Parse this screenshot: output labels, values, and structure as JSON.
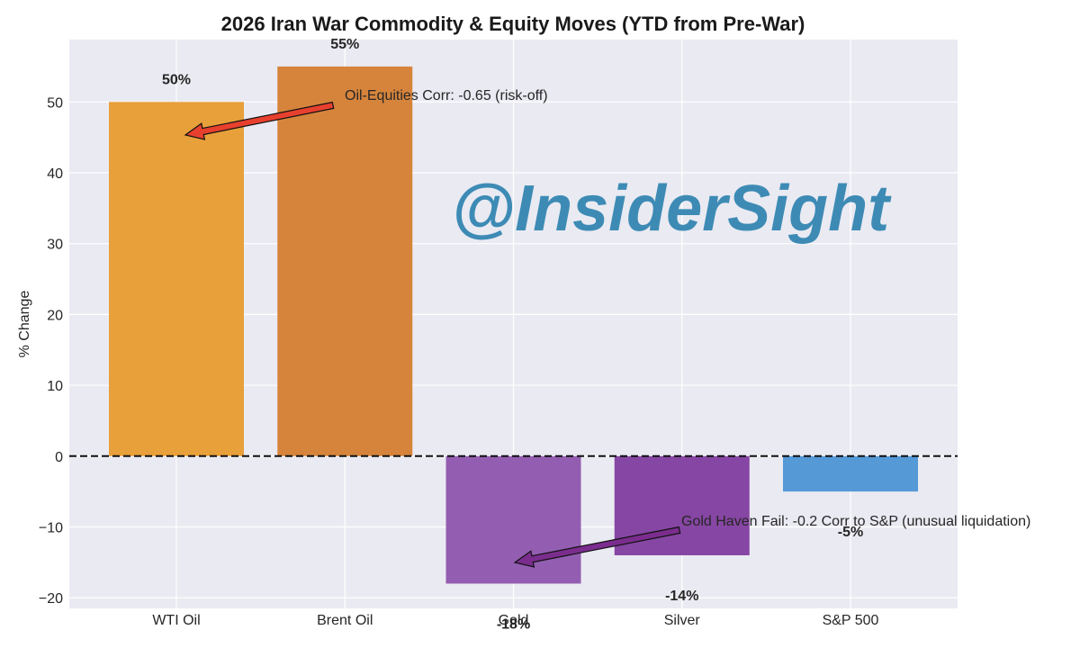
{
  "chart_data": {
    "type": "bar",
    "title": "2026 Iran War Commodity & Equity Moves (YTD from Pre-War)",
    "xlabel": "",
    "ylabel": "% Change",
    "categories": [
      "WTI Oil",
      "Brent Oil",
      "Gold",
      "Silver",
      "S&P 500"
    ],
    "values": [
      50,
      55,
      -18,
      -14,
      -5
    ],
    "value_labels": [
      "50%",
      "55%",
      "-18%",
      "-14%",
      "-5%"
    ],
    "colors": [
      "#e8a03b",
      "#d6843c",
      "#935eb1",
      "#8646a3",
      "#5599d6"
    ],
    "ylim": [
      -21.5,
      58.8
    ],
    "yticks": [
      -20,
      -10,
      0,
      10,
      20,
      30,
      40,
      50
    ],
    "ytick_labels": [
      "−20",
      "−10",
      "0",
      "10",
      "20",
      "30",
      "40",
      "50"
    ],
    "grid": true,
    "zero_line": "dashed",
    "annotations": [
      {
        "text": "Oil-Equities Corr: -0.65 (risk-off)",
        "points_to": "WTI Oil",
        "arrow_color": "#e8402e"
      },
      {
        "text": "Gold Haven Fail: -0.2 Corr to S&P (unusual liquidation)",
        "points_to": "Gold",
        "arrow_color": "#7b2d8e"
      }
    ],
    "watermark": "@InsiderSight",
    "watermark_color": "#3d8bb5"
  }
}
